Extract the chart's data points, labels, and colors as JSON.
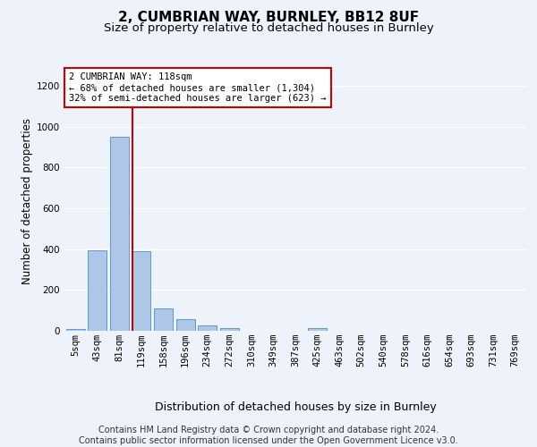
{
  "title1": "2, CUMBRIAN WAY, BURNLEY, BB12 8UF",
  "title2": "Size of property relative to detached houses in Burnley",
  "xlabel": "Distribution of detached houses by size in Burnley",
  "ylabel": "Number of detached properties",
  "categories": [
    "5sqm",
    "43sqm",
    "81sqm",
    "119sqm",
    "158sqm",
    "196sqm",
    "234sqm",
    "272sqm",
    "310sqm",
    "349sqm",
    "387sqm",
    "425sqm",
    "463sqm",
    "502sqm",
    "540sqm",
    "578sqm",
    "616sqm",
    "654sqm",
    "693sqm",
    "731sqm",
    "769sqm"
  ],
  "values": [
    10,
    395,
    950,
    390,
    110,
    55,
    25,
    12,
    0,
    0,
    0,
    12,
    0,
    0,
    0,
    0,
    0,
    0,
    0,
    0,
    0
  ],
  "bar_color": "#aec6e8",
  "bar_edge_color": "#5b9bd5",
  "background_color": "#eef2fb",
  "grid_color": "#ffffff",
  "annotation_box_color": "#ffffff",
  "annotation_box_edge": "#cc0000",
  "vline_color": "#cc0000",
  "vline_x_index": 3,
  "annotation_text": "2 CUMBRIAN WAY: 118sqm\n← 68% of detached houses are smaller (1,304)\n32% of semi-detached houses are larger (623) →",
  "footnote": "Contains HM Land Registry data © Crown copyright and database right 2024.\nContains public sector information licensed under the Open Government Licence v3.0.",
  "ylim": [
    0,
    1270
  ],
  "yticks": [
    0,
    200,
    400,
    600,
    800,
    1000,
    1200
  ],
  "title1_fontsize": 11,
  "title2_fontsize": 9.5,
  "xlabel_fontsize": 9,
  "ylabel_fontsize": 8.5,
  "tick_fontsize": 7.5,
  "annotation_fontsize": 7.5,
  "footnote_fontsize": 7
}
